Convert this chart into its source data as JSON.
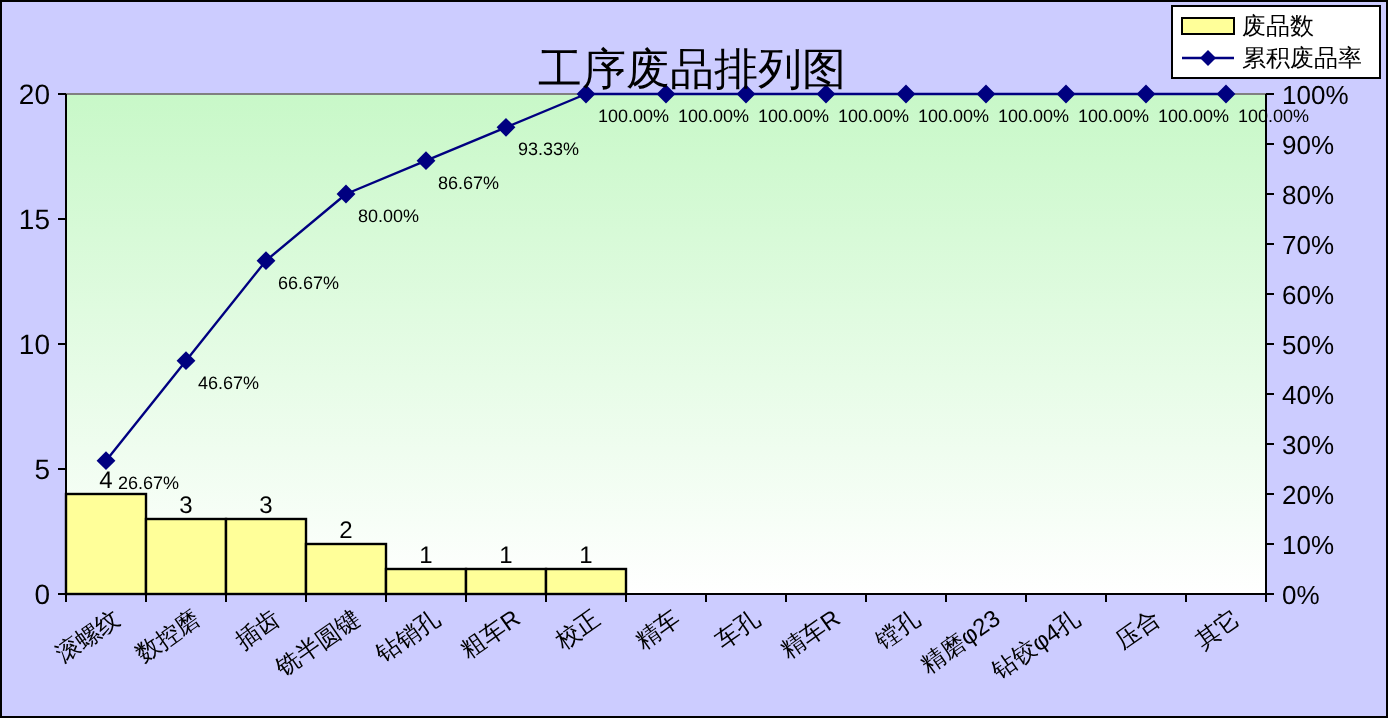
{
  "chart_data": {
    "type": "bar",
    "title": "工序废品排列图",
    "categories": [
      "滚螺纹",
      "数控磨",
      "插齿",
      "铣半圆键",
      "钻销孔",
      "粗车R",
      "校正",
      "精车",
      "车孔",
      "精车R",
      "镗孔",
      "精磨φ23",
      "钻铰φ4孔",
      "压合",
      "其它"
    ],
    "series": [
      {
        "name": "废品数",
        "color": "#ffff99",
        "values": [
          4,
          3,
          3,
          2,
          1,
          1,
          1,
          0,
          0,
          0,
          0,
          0,
          0,
          0,
          0
        ],
        "value_labels": [
          "4",
          "3",
          "3",
          "2",
          "1",
          "1",
          "1",
          null,
          null,
          null,
          null,
          null,
          null,
          null,
          null
        ]
      },
      {
        "name": "累积废品率",
        "type": "line",
        "axis": "y2",
        "color": "#000080",
        "marker": "diamond",
        "values": [
          26.67,
          46.67,
          66.67,
          80,
          86.67,
          93.33,
          100,
          100,
          100,
          100,
          100,
          100,
          100,
          100,
          100
        ],
        "value_labels": [
          "26.67%",
          "46.67%",
          "66.67%",
          "80.00%",
          "86.67%",
          "93.33%",
          "100.00%",
          "100.00%",
          "100.00%",
          "100.00%",
          "100.00%",
          "100.00%",
          "100.00%",
          "100.00%",
          "100.00%"
        ]
      }
    ],
    "ylim": [
      0,
      20
    ],
    "yticks": [
      0,
      5,
      10,
      15,
      20
    ],
    "y2lim": [
      0,
      100
    ],
    "y2ticks": [
      {
        "value": 0,
        "label": "0%"
      },
      {
        "value": 10,
        "label": "10%"
      },
      {
        "value": 20,
        "label": "20%"
      },
      {
        "value": 30,
        "label": "30%"
      },
      {
        "value": 40,
        "label": "40%"
      },
      {
        "value": 50,
        "label": "50%"
      },
      {
        "value": 60,
        "label": "60%"
      },
      {
        "value": 70,
        "label": "70%"
      },
      {
        "value": 80,
        "label": "80%"
      },
      {
        "value": 90,
        "label": "90%"
      },
      {
        "value": 100,
        "label": "100%"
      }
    ],
    "legend": "top right",
    "grid": false
  }
}
